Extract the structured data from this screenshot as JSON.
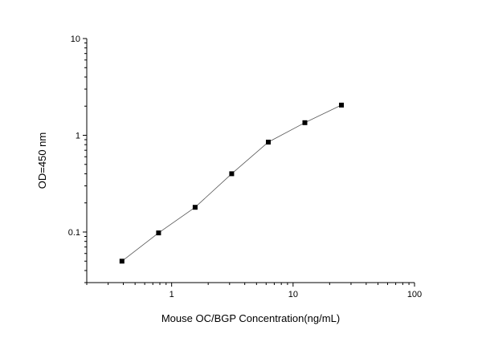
{
  "chart_data": {
    "type": "scatter",
    "title": "",
    "xlabel": "Mouse OC/BGP  Concentration(ng/mL)",
    "ylabel": "OD=450 nm",
    "x_scale": "log",
    "y_scale": "log",
    "xlim": [
      0.2,
      100
    ],
    "ylim": [
      0.03,
      10
    ],
    "x_ticks": [
      {
        "value": 1,
        "label": "1"
      },
      {
        "value": 10,
        "label": "10"
      },
      {
        "value": 100,
        "label": "100"
      }
    ],
    "y_ticks": [
      {
        "value": 0.1,
        "label": "0.1"
      },
      {
        "value": 1,
        "label": "1"
      },
      {
        "value": 10,
        "label": "10"
      }
    ],
    "grid": false,
    "legend": "none",
    "series": [
      {
        "x": [
          0.39,
          0.78,
          1.56,
          3.12,
          6.25,
          12.5,
          25
        ],
        "y": [
          0.05,
          0.098,
          0.18,
          0.4,
          0.85,
          1.35,
          2.05
        ],
        "marker": "square",
        "connected": true,
        "color": "#000000",
        "line_color": "#555555"
      }
    ]
  }
}
